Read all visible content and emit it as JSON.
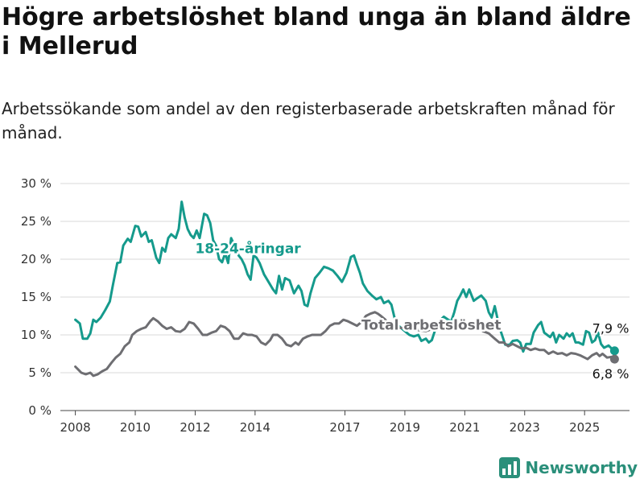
{
  "title": "Högre arbetslöshet bland unga än bland äldre i Mellerud",
  "subtitle": "Arbetssökande som andel av den registerbaserade arbetskraften månad för månad.",
  "brand": {
    "name": "Newsworthy",
    "icon": "bar-chart-logo-icon",
    "color": "#2a8f7a"
  },
  "chart_data": {
    "type": "line",
    "y_ticks": [
      "0 %",
      "5 %",
      "10 %",
      "15 %",
      "20 %",
      "25 %",
      "30 %"
    ],
    "x_ticks": [
      "2008",
      "2010",
      "2012",
      "2014",
      "2017",
      "2019",
      "2021",
      "2023",
      "2025"
    ],
    "ylim": [
      0,
      30
    ],
    "grid": true,
    "series": [
      {
        "name": "18-24-åringar",
        "color": "#159a8c",
        "end_label": "7,9 %",
        "points": [
          [
            2008.0,
            12.0
          ],
          [
            2008.15,
            11.5
          ],
          [
            2008.25,
            9.5
          ],
          [
            2008.4,
            9.5
          ],
          [
            2008.5,
            10.2
          ],
          [
            2008.6,
            12.0
          ],
          [
            2008.7,
            11.7
          ],
          [
            2008.85,
            12.3
          ],
          [
            2009.0,
            13.3
          ],
          [
            2009.15,
            14.4
          ],
          [
            2009.25,
            16.5
          ],
          [
            2009.4,
            19.5
          ],
          [
            2009.5,
            19.6
          ],
          [
            2009.6,
            21.8
          ],
          [
            2009.75,
            22.7
          ],
          [
            2009.85,
            22.3
          ],
          [
            2010.0,
            24.4
          ],
          [
            2010.1,
            24.3
          ],
          [
            2010.2,
            23.0
          ],
          [
            2010.35,
            23.6
          ],
          [
            2010.45,
            22.3
          ],
          [
            2010.55,
            22.5
          ],
          [
            2010.7,
            20.2
          ],
          [
            2010.8,
            19.5
          ],
          [
            2010.9,
            21.5
          ],
          [
            2011.0,
            21.0
          ],
          [
            2011.1,
            22.8
          ],
          [
            2011.2,
            23.3
          ],
          [
            2011.35,
            22.8
          ],
          [
            2011.45,
            24.0
          ],
          [
            2011.55,
            27.6
          ],
          [
            2011.65,
            25.5
          ],
          [
            2011.75,
            24.0
          ],
          [
            2011.85,
            23.2
          ],
          [
            2011.95,
            22.8
          ],
          [
            2012.05,
            23.8
          ],
          [
            2012.15,
            22.8
          ],
          [
            2012.3,
            26.0
          ],
          [
            2012.4,
            25.8
          ],
          [
            2012.5,
            24.8
          ],
          [
            2012.6,
            22.5
          ],
          [
            2012.7,
            21.8
          ],
          [
            2012.8,
            20.0
          ],
          [
            2012.9,
            19.6
          ],
          [
            2013.0,
            20.8
          ],
          [
            2013.1,
            19.5
          ],
          [
            2013.2,
            22.8
          ],
          [
            2013.35,
            21.5
          ],
          [
            2013.45,
            20.5
          ],
          [
            2013.55,
            20.0
          ],
          [
            2013.65,
            19.2
          ],
          [
            2013.75,
            18.0
          ],
          [
            2013.85,
            17.3
          ],
          [
            2013.95,
            20.5
          ],
          [
            2014.05,
            20.2
          ],
          [
            2014.15,
            19.5
          ],
          [
            2014.3,
            18.0
          ],
          [
            2014.45,
            17.0
          ],
          [
            2014.6,
            16.0
          ],
          [
            2014.7,
            15.5
          ],
          [
            2014.8,
            17.8
          ],
          [
            2014.9,
            16.0
          ],
          [
            2015.0,
            17.5
          ],
          [
            2015.15,
            17.2
          ],
          [
            2015.3,
            15.5
          ],
          [
            2015.45,
            16.5
          ],
          [
            2015.55,
            15.8
          ],
          [
            2015.65,
            14.0
          ],
          [
            2015.75,
            13.8
          ],
          [
            2015.85,
            15.5
          ],
          [
            2016.0,
            17.5
          ],
          [
            2016.15,
            18.2
          ],
          [
            2016.3,
            19.0
          ],
          [
            2016.45,
            18.8
          ],
          [
            2016.6,
            18.5
          ],
          [
            2016.75,
            17.8
          ],
          [
            2016.9,
            17.0
          ],
          [
            2017.05,
            18.2
          ],
          [
            2017.2,
            20.3
          ],
          [
            2017.3,
            20.5
          ],
          [
            2017.4,
            19.3
          ],
          [
            2017.5,
            18.2
          ],
          [
            2017.6,
            16.8
          ],
          [
            2017.75,
            15.8
          ],
          [
            2017.9,
            15.2
          ],
          [
            2018.05,
            14.7
          ],
          [
            2018.2,
            15.0
          ],
          [
            2018.3,
            14.2
          ],
          [
            2018.45,
            14.5
          ],
          [
            2018.55,
            14.0
          ],
          [
            2018.7,
            11.5
          ],
          [
            2019.0,
            10.5
          ],
          [
            2019.15,
            10.0
          ],
          [
            2019.3,
            9.8
          ],
          [
            2019.45,
            10.0
          ],
          [
            2019.55,
            9.2
          ],
          [
            2019.7,
            9.5
          ],
          [
            2019.8,
            9.0
          ],
          [
            2019.9,
            9.3
          ],
          [
            2020.0,
            10.5
          ],
          [
            2020.15,
            11.8
          ],
          [
            2020.3,
            12.4
          ],
          [
            2020.45,
            12.0
          ],
          [
            2020.55,
            11.8
          ],
          [
            2020.65,
            13.0
          ],
          [
            2020.75,
            14.5
          ],
          [
            2020.85,
            15.2
          ],
          [
            2020.95,
            16.0
          ],
          [
            2021.05,
            15.0
          ],
          [
            2021.15,
            16.0
          ],
          [
            2021.3,
            14.5
          ],
          [
            2021.4,
            14.8
          ],
          [
            2021.55,
            15.2
          ],
          [
            2021.7,
            14.5
          ],
          [
            2021.8,
            13.0
          ],
          [
            2021.9,
            12.3
          ],
          [
            2022.0,
            13.8
          ],
          [
            2022.1,
            12.0
          ],
          [
            2022.2,
            10.5
          ],
          [
            2022.35,
            8.7
          ],
          [
            2022.5,
            8.7
          ],
          [
            2022.6,
            9.2
          ],
          [
            2022.75,
            9.3
          ],
          [
            2022.85,
            9.0
          ],
          [
            2022.95,
            7.8
          ],
          [
            2023.05,
            8.8
          ],
          [
            2023.2,
            8.8
          ],
          [
            2023.3,
            10.3
          ],
          [
            2023.45,
            11.3
          ],
          [
            2023.55,
            11.7
          ],
          [
            2023.65,
            10.3
          ],
          [
            2023.75,
            10.0
          ],
          [
            2023.85,
            9.7
          ],
          [
            2023.95,
            10.3
          ],
          [
            2024.05,
            9.0
          ],
          [
            2024.15,
            10.0
          ],
          [
            2024.3,
            9.5
          ],
          [
            2024.4,
            10.2
          ],
          [
            2024.5,
            9.8
          ],
          [
            2024.6,
            10.2
          ],
          [
            2024.7,
            9.0
          ],
          [
            2024.8,
            9.0
          ],
          [
            2024.95,
            8.7
          ],
          [
            2025.05,
            10.5
          ],
          [
            2025.15,
            10.3
          ],
          [
            2025.25,
            9.0
          ],
          [
            2025.35,
            9.3
          ],
          [
            2025.45,
            10.3
          ],
          [
            2025.55,
            8.8
          ],
          [
            2025.65,
            8.3
          ],
          [
            2025.8,
            8.6
          ],
          [
            2025.9,
            8.2
          ],
          [
            2026.0,
            7.9
          ]
        ]
      },
      {
        "name": "Total arbetslöshet",
        "color": "#6e6e72",
        "end_label": "6,8 %",
        "points": [
          [
            2008.0,
            5.8
          ],
          [
            2008.1,
            5.4
          ],
          [
            2008.2,
            5.0
          ],
          [
            2008.35,
            4.8
          ],
          [
            2008.5,
            5.0
          ],
          [
            2008.6,
            4.6
          ],
          [
            2008.75,
            4.8
          ],
          [
            2008.9,
            5.2
          ],
          [
            2009.05,
            5.5
          ],
          [
            2009.2,
            6.3
          ],
          [
            2009.35,
            7.0
          ],
          [
            2009.5,
            7.5
          ],
          [
            2009.65,
            8.5
          ],
          [
            2009.8,
            9.0
          ],
          [
            2009.9,
            10.0
          ],
          [
            2010.05,
            10.5
          ],
          [
            2010.2,
            10.8
          ],
          [
            2010.35,
            11.0
          ],
          [
            2010.5,
            11.8
          ],
          [
            2010.6,
            12.2
          ],
          [
            2010.75,
            11.8
          ],
          [
            2010.9,
            11.2
          ],
          [
            2011.05,
            10.8
          ],
          [
            2011.2,
            11.0
          ],
          [
            2011.35,
            10.5
          ],
          [
            2011.5,
            10.4
          ],
          [
            2011.65,
            10.8
          ],
          [
            2011.8,
            11.7
          ],
          [
            2011.95,
            11.5
          ],
          [
            2012.1,
            10.8
          ],
          [
            2012.25,
            10.0
          ],
          [
            2012.4,
            10.0
          ],
          [
            2012.55,
            10.3
          ],
          [
            2012.7,
            10.5
          ],
          [
            2012.85,
            11.2
          ],
          [
            2013.0,
            11.0
          ],
          [
            2013.15,
            10.5
          ],
          [
            2013.3,
            9.5
          ],
          [
            2013.45,
            9.5
          ],
          [
            2013.6,
            10.2
          ],
          [
            2013.75,
            10.0
          ],
          [
            2013.9,
            10.0
          ],
          [
            2014.05,
            9.8
          ],
          [
            2014.2,
            9.0
          ],
          [
            2014.35,
            8.7
          ],
          [
            2014.5,
            9.3
          ],
          [
            2014.6,
            10.0
          ],
          [
            2014.75,
            10.0
          ],
          [
            2014.9,
            9.5
          ],
          [
            2015.05,
            8.7
          ],
          [
            2015.2,
            8.5
          ],
          [
            2015.35,
            9.0
          ],
          [
            2015.45,
            8.7
          ],
          [
            2015.6,
            9.5
          ],
          [
            2015.75,
            9.8
          ],
          [
            2015.9,
            10.0
          ],
          [
            2016.05,
            10.0
          ],
          [
            2016.2,
            10.0
          ],
          [
            2016.35,
            10.5
          ],
          [
            2016.5,
            11.2
          ],
          [
            2016.65,
            11.5
          ],
          [
            2016.8,
            11.5
          ],
          [
            2016.95,
            12.0
          ],
          [
            2017.1,
            11.8
          ],
          [
            2017.25,
            11.5
          ],
          [
            2017.4,
            11.2
          ],
          [
            2017.55,
            11.7
          ],
          [
            2017.7,
            12.5
          ],
          [
            2017.85,
            12.8
          ],
          [
            2018.0,
            13.0
          ],
          [
            2018.1,
            12.8
          ],
          [
            2018.2,
            12.5
          ],
          [
            2018.35,
            12.0
          ],
          [
            2018.5,
            11.0
          ],
          [
            2018.65,
            11.0
          ],
          [
            2019.25,
            10.8
          ],
          [
            2019.5,
            10.6
          ],
          [
            2019.7,
            10.5
          ],
          [
            2019.85,
            10.7
          ],
          [
            2020.0,
            11.0
          ],
          [
            2020.2,
            10.8
          ],
          [
            2020.4,
            10.8
          ],
          [
            2020.6,
            11.0
          ],
          [
            2020.8,
            11.2
          ],
          [
            2021.0,
            11.5
          ],
          [
            2021.2,
            11.0
          ],
          [
            2021.4,
            11.2
          ],
          [
            2021.6,
            10.5
          ],
          [
            2021.8,
            10.2
          ],
          [
            2022.0,
            9.5
          ],
          [
            2022.15,
            9.0
          ],
          [
            2022.3,
            9.0
          ],
          [
            2022.45,
            8.5
          ],
          [
            2022.6,
            8.8
          ],
          [
            2022.75,
            8.5
          ],
          [
            2022.9,
            8.2
          ],
          [
            2023.05,
            8.3
          ],
          [
            2023.2,
            8.0
          ],
          [
            2023.35,
            8.2
          ],
          [
            2023.5,
            8.0
          ],
          [
            2023.65,
            8.0
          ],
          [
            2023.8,
            7.5
          ],
          [
            2023.95,
            7.8
          ],
          [
            2024.1,
            7.5
          ],
          [
            2024.25,
            7.6
          ],
          [
            2024.4,
            7.3
          ],
          [
            2024.55,
            7.6
          ],
          [
            2024.7,
            7.5
          ],
          [
            2024.85,
            7.3
          ],
          [
            2025.0,
            7.0
          ],
          [
            2025.1,
            6.8
          ],
          [
            2025.25,
            7.3
          ],
          [
            2025.4,
            7.6
          ],
          [
            2025.5,
            7.2
          ],
          [
            2025.6,
            7.5
          ],
          [
            2025.75,
            7.0
          ],
          [
            2025.9,
            7.1
          ],
          [
            2026.0,
            6.8
          ]
        ]
      }
    ]
  }
}
